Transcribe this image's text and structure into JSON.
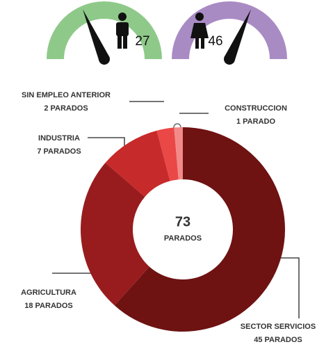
{
  "chart_data": [
    {
      "type": "gauge",
      "ylim": [
        0,
        73
      ],
      "series": [
        {
          "name": "hombres",
          "color": "#8fc98a",
          "values": [
            27
          ]
        },
        {
          "name": "mujeres",
          "color": "#a98bc4",
          "values": [
            46
          ]
        }
      ]
    },
    {
      "type": "pie",
      "donut": true,
      "total": 73,
      "total_label": "PARADOS",
      "categories": [
        "SECTOR SERVICIOS",
        "AGRICULTURA",
        "INDUSTRIA",
        "SIN EMPLEO ANTERIOR",
        "CONSTRUCCION"
      ],
      "values": [
        45,
        18,
        7,
        2,
        1
      ],
      "value_labels": [
        "45 PARADOS",
        "18 PARADOS",
        "7 PARADOS",
        "2 PARADOS",
        "1 PARADO"
      ],
      "colors": [
        "#6e1212",
        "#981c1e",
        "#c72a2a",
        "#ea4747",
        "#f28a8a"
      ]
    }
  ]
}
